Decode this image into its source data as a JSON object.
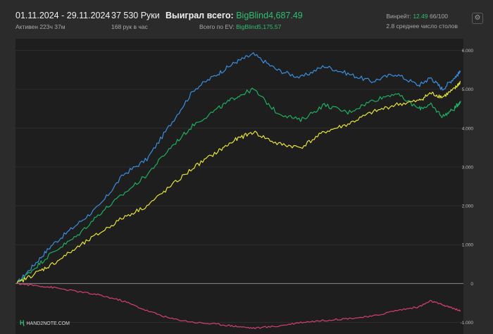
{
  "header": {
    "date_range": "01.11.2024 - 29.11.2024",
    "active_time": "Активен 223ч 37м",
    "hands_count": "37 530 Руки",
    "hands_per_hour": "168 рук в час",
    "won_label": "Выиграл всего:",
    "won_value": "BigBlind4,687.49",
    "ev_label": "Всего по EV:",
    "ev_value": "BigBlind5,175.57",
    "winrate_label": "Винрейт:",
    "winrate_value": "12.49",
    "winrate_suffix": "66/100",
    "avg_tables": "2.8 среднее число столов"
  },
  "branding": {
    "logo_text": "HAND2NOTE.COM"
  },
  "icons": {
    "settings": "gear-icon",
    "logo": "hand2note-logo-icon"
  },
  "chart_data": {
    "type": "line",
    "ylim": [
      -1300,
      6300
    ],
    "xlim": [
      0,
      37530
    ],
    "yticks": [
      "6.000",
      "5.000",
      "4.000",
      "3.000",
      "2.000",
      "1.000",
      "0",
      "-1.000"
    ],
    "grid": true,
    "series": [
      {
        "color": "#3a8fe0",
        "x": [
          0,
          1500,
          3000,
          5000,
          7000,
          9000,
          11000,
          13000,
          15000,
          17000,
          18500,
          20000,
          22000,
          24000,
          26000,
          28000,
          30000,
          32000,
          34000,
          35000,
          36000,
          37000,
          37530
        ],
        "y": [
          0,
          500,
          1000,
          1500,
          2000,
          2800,
          3200,
          4100,
          5000,
          5400,
          5700,
          5900,
          5500,
          5300,
          5600,
          5400,
          5200,
          5400,
          5100,
          5300,
          5000,
          5300,
          5450
        ]
      },
      {
        "color": "#1fae62",
        "x": [
          0,
          1500,
          3000,
          5000,
          7000,
          9000,
          11000,
          13000,
          15000,
          17000,
          18500,
          20000,
          22000,
          24000,
          26000,
          28000,
          30000,
          32000,
          34000,
          35000,
          36000,
          37000,
          37530
        ],
        "y": [
          0,
          400,
          800,
          1200,
          1800,
          2300,
          2800,
          3500,
          4100,
          4500,
          4800,
          5000,
          4400,
          4200,
          4600,
          4400,
          4700,
          4900,
          4500,
          4600,
          4300,
          4500,
          4700
        ]
      },
      {
        "color": "#e8e33a",
        "x": [
          0,
          1500,
          3000,
          5000,
          7000,
          9000,
          11000,
          13000,
          15000,
          17000,
          18500,
          20000,
          22000,
          24000,
          26000,
          28000,
          30000,
          32000,
          34000,
          35000,
          36000,
          37000,
          37530
        ],
        "y": [
          0,
          250,
          500,
          900,
          1300,
          1700,
          2000,
          2500,
          3000,
          3400,
          3700,
          3900,
          3600,
          3500,
          3900,
          4100,
          4400,
          4600,
          4700,
          4900,
          4800,
          5000,
          5200
        ]
      },
      {
        "color": "#d63e7a",
        "x": [
          0,
          1500,
          3000,
          5000,
          7000,
          9000,
          11000,
          13000,
          15000,
          17000,
          18500,
          20000,
          22000,
          24000,
          26000,
          28000,
          30000,
          32000,
          34000,
          35000,
          36000,
          37000,
          37530
        ],
        "y": [
          0,
          -50,
          -100,
          -200,
          -300,
          -450,
          -700,
          -900,
          -1000,
          -1050,
          -1100,
          -1150,
          -1100,
          -1000,
          -950,
          -900,
          -850,
          -700,
          -600,
          -450,
          -550,
          -650,
          -700
        ]
      }
    ]
  }
}
